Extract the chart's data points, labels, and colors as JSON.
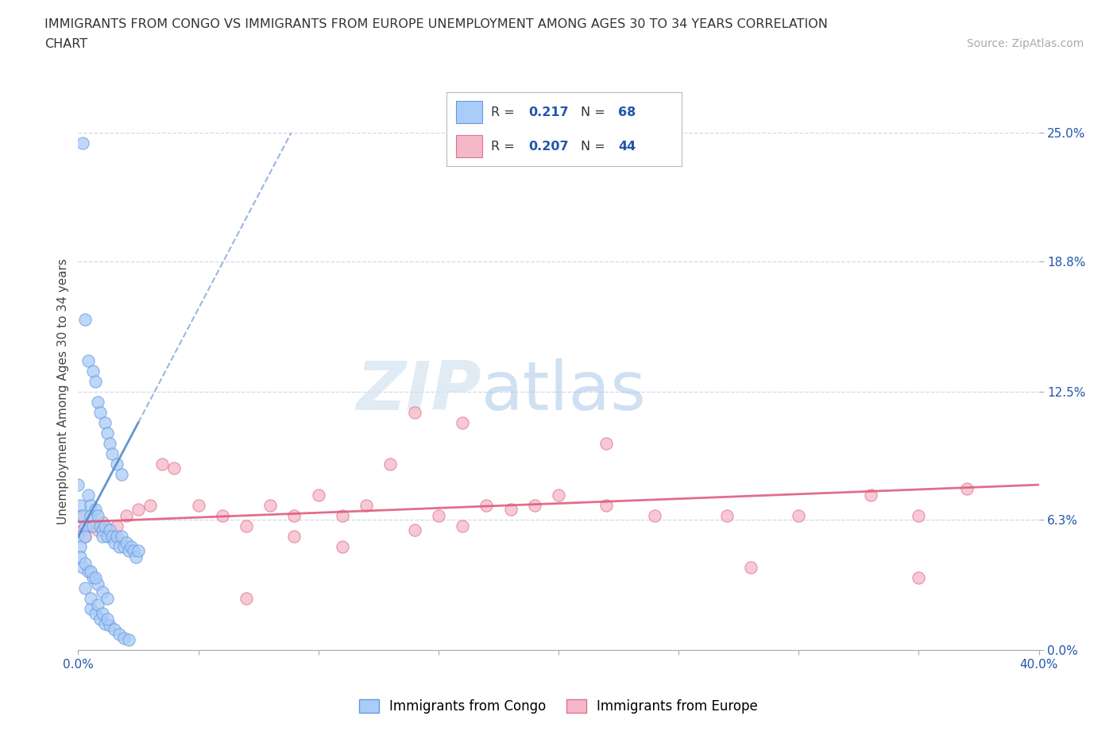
{
  "title_line1": "IMMIGRANTS FROM CONGO VS IMMIGRANTS FROM EUROPE UNEMPLOYMENT AMONG AGES 30 TO 34 YEARS CORRELATION",
  "title_line2": "CHART",
  "source_text": "Source: ZipAtlas.com",
  "ylabel": "Unemployment Among Ages 30 to 34 years",
  "xlim": [
    0.0,
    0.4
  ],
  "ylim": [
    0.0,
    0.25
  ],
  "ytick_values": [
    0.0,
    0.063,
    0.125,
    0.188,
    0.25
  ],
  "ytick_labels": [
    "0.0%",
    "6.3%",
    "12.5%",
    "18.8%",
    "25.0%"
  ],
  "grid_color": "#d0d8e8",
  "grid_linestyle": "--",
  "background_color": "#ffffff",
  "congo_color": "#aaccf8",
  "congo_edge_color": "#6699dd",
  "europe_color": "#f5b8c8",
  "europe_edge_color": "#e07090",
  "legend_R1": "0.217",
  "legend_N1": "68",
  "legend_R2": "0.207",
  "legend_N2": "44",
  "legend_color": "#2255aa",
  "trendline_congo_color": "#5588cc",
  "trendline_europe_color": "#dd5577",
  "axis_label_color": "#444444",
  "tick_color": "#2255aa",
  "watermark_ZIP_color": "#d8e4f0",
  "watermark_atlas_color": "#b8d0ee",
  "congo_x": [
    0.002,
    0.0,
    0.0,
    0.001,
    0.001,
    0.002,
    0.003,
    0.003,
    0.004,
    0.005,
    0.005,
    0.006,
    0.007,
    0.008,
    0.009,
    0.01,
    0.01,
    0.011,
    0.012,
    0.013,
    0.014,
    0.015,
    0.016,
    0.017,
    0.018,
    0.019,
    0.02,
    0.021,
    0.022,
    0.023,
    0.024,
    0.025,
    0.003,
    0.004,
    0.006,
    0.007,
    0.008,
    0.009,
    0.011,
    0.012,
    0.013,
    0.014,
    0.016,
    0.018,
    0.005,
    0.007,
    0.009,
    0.011,
    0.013,
    0.015,
    0.017,
    0.019,
    0.021,
    0.003,
    0.005,
    0.008,
    0.01,
    0.012,
    0.002,
    0.004,
    0.006,
    0.008,
    0.01,
    0.012,
    0.001,
    0.003,
    0.005,
    0.007
  ],
  "congo_y": [
    0.245,
    0.08,
    0.055,
    0.07,
    0.05,
    0.065,
    0.06,
    0.055,
    0.075,
    0.07,
    0.065,
    0.06,
    0.068,
    0.065,
    0.06,
    0.058,
    0.055,
    0.06,
    0.055,
    0.058,
    0.055,
    0.052,
    0.055,
    0.05,
    0.055,
    0.05,
    0.052,
    0.048,
    0.05,
    0.048,
    0.045,
    0.048,
    0.16,
    0.14,
    0.135,
    0.13,
    0.12,
    0.115,
    0.11,
    0.105,
    0.1,
    0.095,
    0.09,
    0.085,
    0.02,
    0.018,
    0.015,
    0.013,
    0.012,
    0.01,
    0.008,
    0.006,
    0.005,
    0.03,
    0.025,
    0.022,
    0.018,
    0.015,
    0.04,
    0.038,
    0.035,
    0.032,
    0.028,
    0.025,
    0.045,
    0.042,
    0.038,
    0.035
  ],
  "europe_x": [
    0.001,
    0.002,
    0.003,
    0.005,
    0.008,
    0.01,
    0.013,
    0.016,
    0.02,
    0.025,
    0.03,
    0.035,
    0.04,
    0.05,
    0.06,
    0.07,
    0.08,
    0.09,
    0.1,
    0.11,
    0.12,
    0.13,
    0.14,
    0.15,
    0.16,
    0.17,
    0.18,
    0.19,
    0.2,
    0.22,
    0.24,
    0.27,
    0.3,
    0.33,
    0.35,
    0.37,
    0.14,
    0.16,
    0.22,
    0.28,
    0.09,
    0.11,
    0.07,
    0.35
  ],
  "europe_y": [
    0.065,
    0.058,
    0.055,
    0.06,
    0.058,
    0.062,
    0.055,
    0.06,
    0.065,
    0.068,
    0.07,
    0.09,
    0.088,
    0.07,
    0.065,
    0.06,
    0.07,
    0.065,
    0.075,
    0.065,
    0.07,
    0.09,
    0.058,
    0.065,
    0.06,
    0.07,
    0.068,
    0.07,
    0.075,
    0.07,
    0.065,
    0.065,
    0.065,
    0.075,
    0.065,
    0.078,
    0.115,
    0.11,
    0.1,
    0.04,
    0.055,
    0.05,
    0.025,
    0.035
  ]
}
